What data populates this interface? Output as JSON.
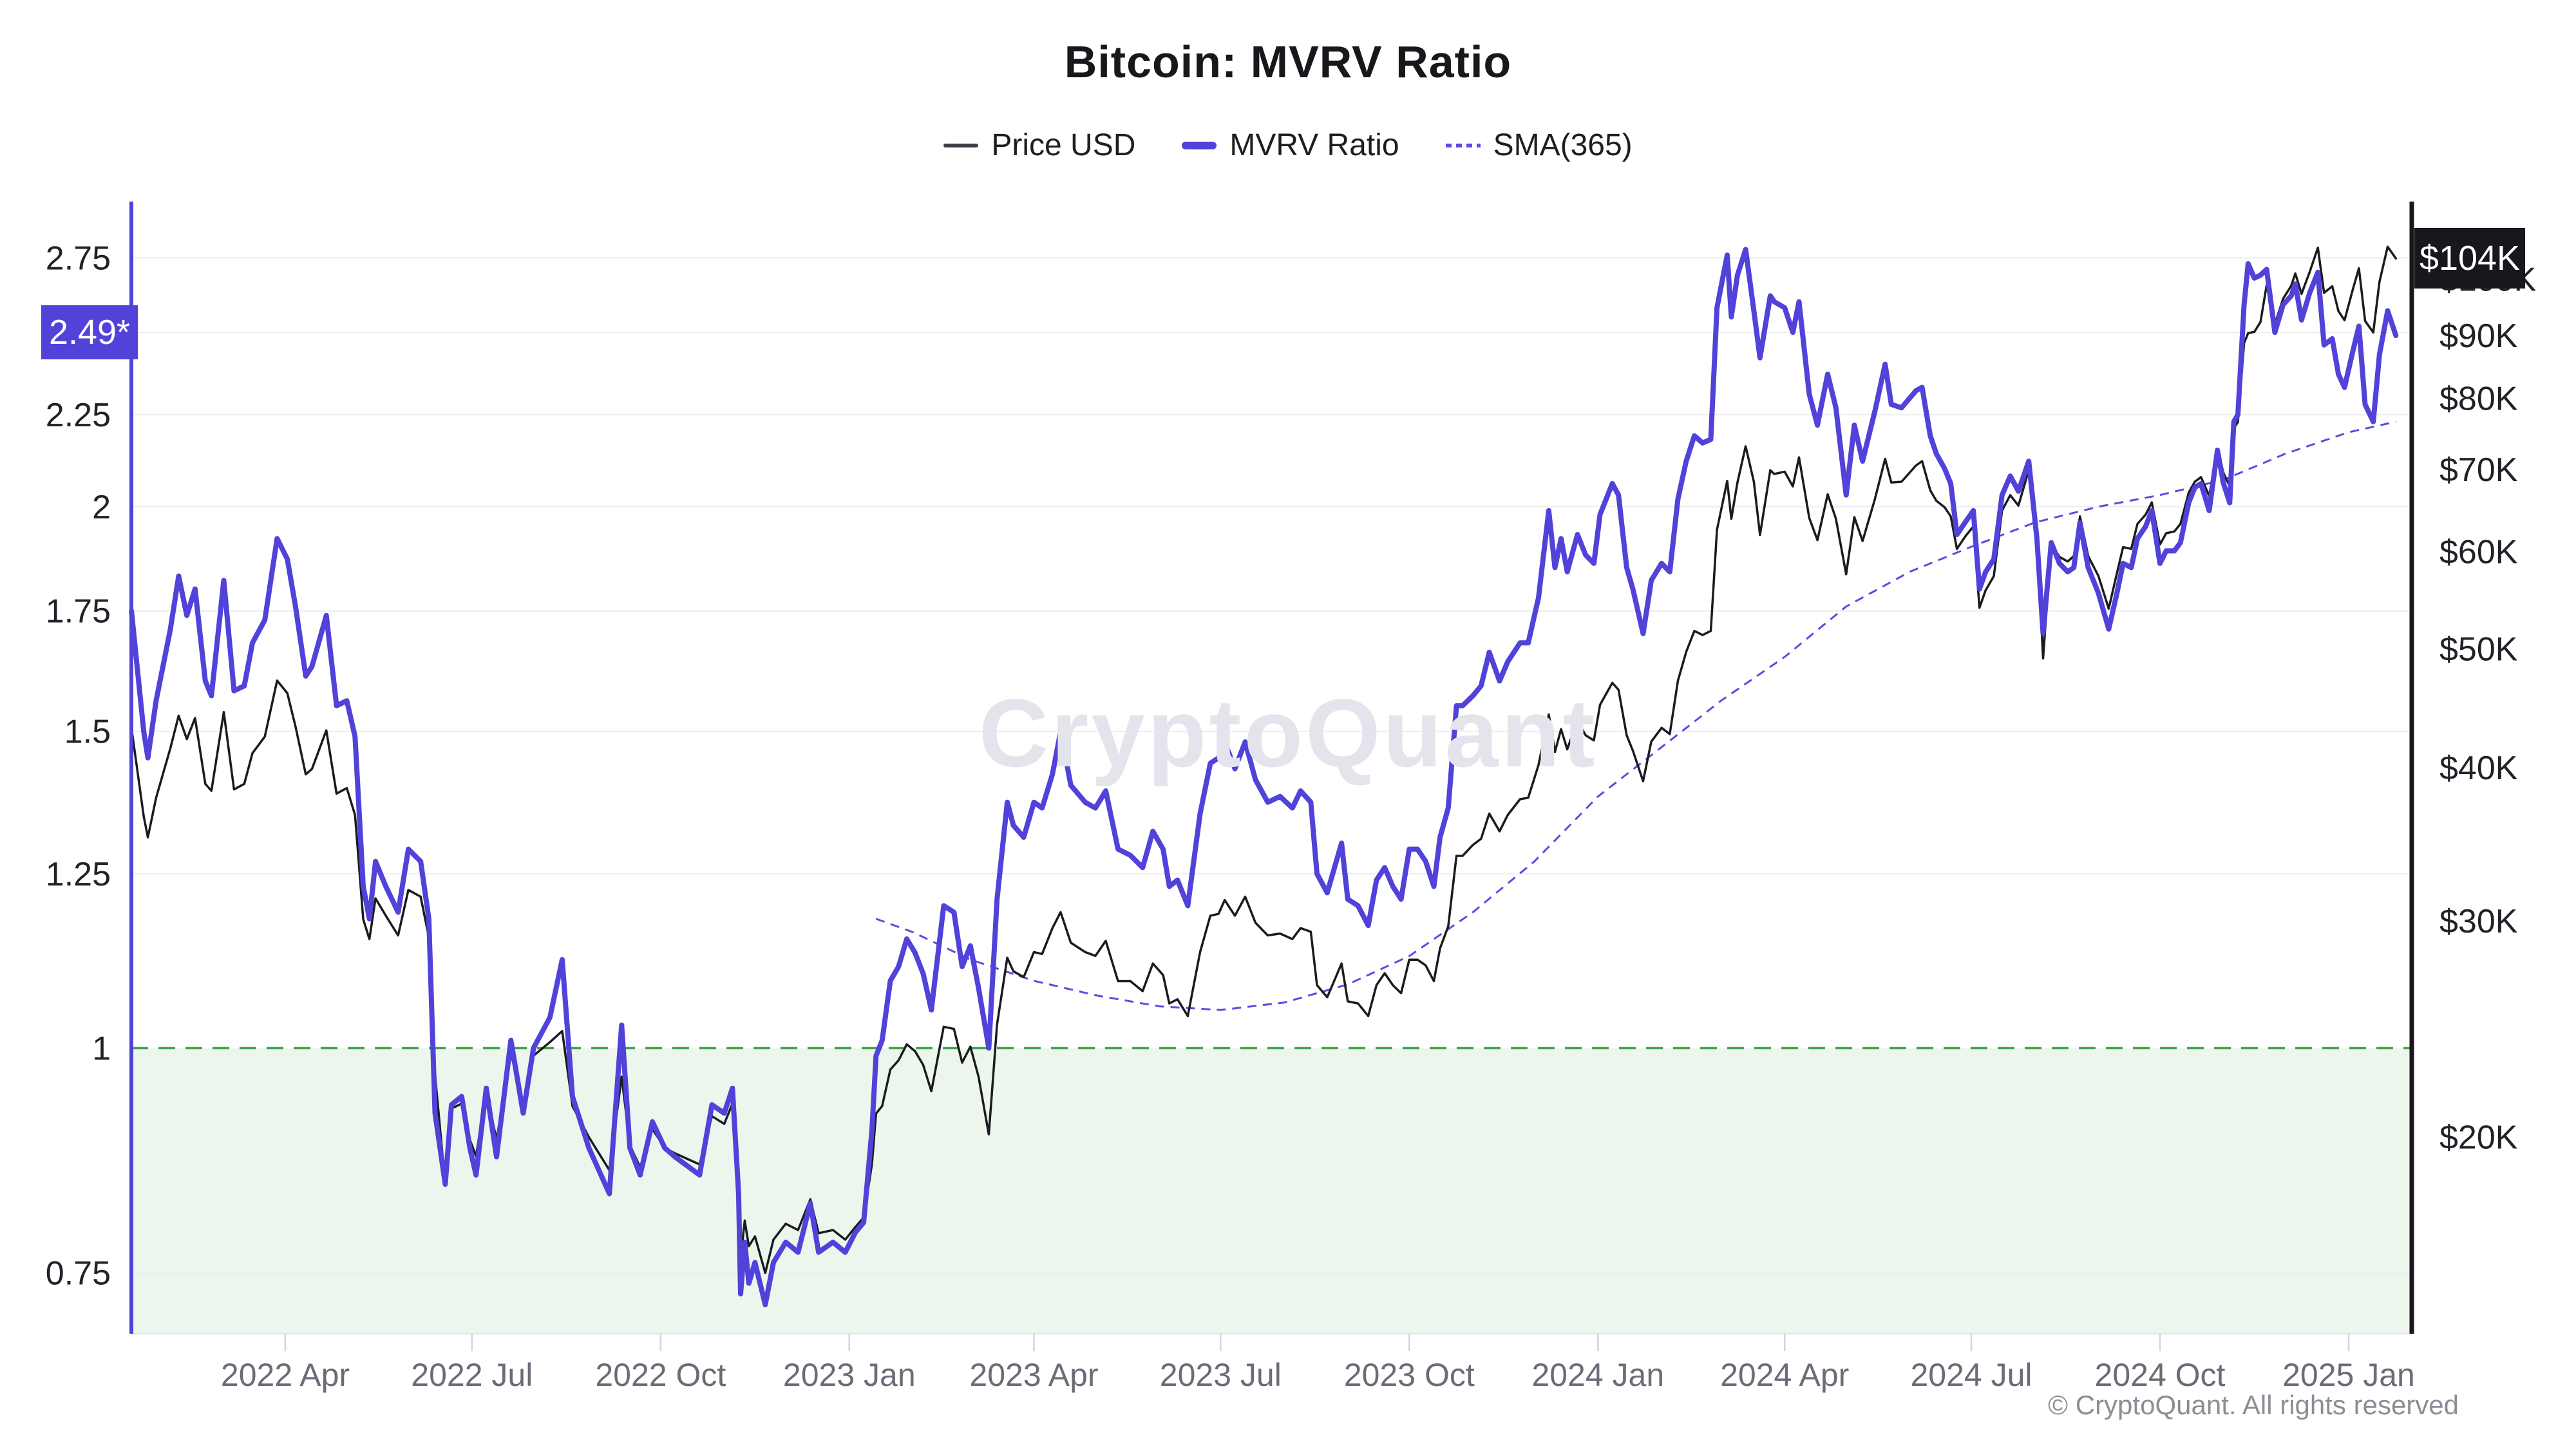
{
  "header": {
    "title": "Bitcoin: MVRV Ratio"
  },
  "legend": {
    "items": [
      {
        "label": "Price USD",
        "kind": "line",
        "color": "#3c3c44"
      },
      {
        "label": "MVRV Ratio",
        "kind": "thick",
        "color": "#5142d9"
      },
      {
        "label": "SMA(365)",
        "kind": "dash",
        "color": "#5b4ce0"
      }
    ]
  },
  "badges": {
    "mvrv_current": {
      "text": "2.49*",
      "value": 2.49,
      "color": "#5142d9"
    },
    "price_current": {
      "text": "$104K",
      "value": 104,
      "color": "#17171c"
    }
  },
  "watermark": {
    "text": "CryptoQuant"
  },
  "footer": {
    "copyright": "© CryptoQuant. All rights reserved"
  },
  "colors": {
    "accent_indigo": "#5142d9",
    "sma_indigo": "#5b4ce0",
    "price_black": "#1b1b1f",
    "threshold_green": "#41a54c",
    "zone_green_fill": "rgba(72,166,80,0.10)",
    "grid": "#ededf2",
    "axis_left": "#5142d9",
    "axis_right": "#17171c",
    "tick_text": "#6c6c78",
    "value_text": "#212128"
  },
  "chart_data": {
    "type": "line",
    "title": "Bitcoin: MVRV Ratio",
    "legend_position": "top",
    "grid": true,
    "x_axis": {
      "start": "2022-01-16",
      "end": "2025-01-24",
      "ticks": [
        {
          "label": "2022 Apr",
          "date": "2022-04-01"
        },
        {
          "label": "2022 Jul",
          "date": "2022-07-01"
        },
        {
          "label": "2022 Oct",
          "date": "2022-10-01"
        },
        {
          "label": "2023 Jan",
          "date": "2023-01-01"
        },
        {
          "label": "2023 Apr",
          "date": "2023-04-01"
        },
        {
          "label": "2023 Jul",
          "date": "2023-07-01"
        },
        {
          "label": "2023 Oct",
          "date": "2023-10-01"
        },
        {
          "label": "2024 Jan",
          "date": "2024-01-01"
        },
        {
          "label": "2024 Apr",
          "date": "2024-04-01"
        },
        {
          "label": "2024 Jul",
          "date": "2024-07-01"
        },
        {
          "label": "2024 Oct",
          "date": "2024-10-01"
        },
        {
          "label": "2025 Jan",
          "date": "2025-01-01"
        }
      ]
    },
    "y_left": {
      "name": "MVRV Ratio",
      "scale": "log",
      "range": [
        0.7,
        2.94
      ],
      "tick_labels": [
        {
          "label": "2.75",
          "value": 2.75
        },
        {
          "label": "2.25",
          "value": 2.25
        },
        {
          "label": "2",
          "value": 2
        },
        {
          "label": "1.75",
          "value": 1.75
        },
        {
          "label": "1.5",
          "value": 1.5
        },
        {
          "label": "1.25",
          "value": 1.25
        },
        {
          "label": "1",
          "value": 1
        },
        {
          "label": "0.75",
          "value": 0.75
        }
      ],
      "gridline_values": [
        2.75,
        2.5,
        2.25,
        2,
        1.75,
        1.5,
        1.25,
        0.75
      ],
      "threshold": {
        "value": 1,
        "style": "dashed",
        "color": "#41a54c"
      },
      "undervalued_zone": {
        "below": 1,
        "fill": "rgba(72,166,80,0.10)"
      }
    },
    "y_right": {
      "name": "Price USD",
      "scale": "log",
      "unit": "USD",
      "range_k": [
        14,
        115
      ],
      "tick_labels": [
        {
          "label": "$100K",
          "value": 100
        },
        {
          "label": "$90K",
          "value": 90
        },
        {
          "label": "$80K",
          "value": 80
        },
        {
          "label": "$70K",
          "value": 70
        },
        {
          "label": "$60K",
          "value": 60
        },
        {
          "label": "$50K",
          "value": 50
        },
        {
          "label": "$40K",
          "value": 40
        },
        {
          "label": "$30K",
          "value": 30
        },
        {
          "label": "$20K",
          "value": 20
        }
      ]
    },
    "dates": [
      "2022-01-16",
      "2022-01-22",
      "2022-01-24",
      "2022-01-28",
      "2022-02-04",
      "2022-02-08",
      "2022-02-12",
      "2022-02-16",
      "2022-02-21",
      "2022-02-24",
      "2022-03-02",
      "2022-03-07",
      "2022-03-12",
      "2022-03-16",
      "2022-03-22",
      "2022-03-28",
      "2022-04-02",
      "2022-04-06",
      "2022-04-11",
      "2022-04-14",
      "2022-04-21",
      "2022-04-26",
      "2022-05-01",
      "2022-05-05",
      "2022-05-09",
      "2022-05-12",
      "2022-05-15",
      "2022-05-20",
      "2022-05-26",
      "2022-05-31",
      "2022-06-06",
      "2022-06-10",
      "2022-06-13",
      "2022-06-18",
      "2022-06-21",
      "2022-06-26",
      "2022-06-30",
      "2022-07-03",
      "2022-07-08",
      "2022-07-13",
      "2022-07-20",
      "2022-07-26",
      "2022-07-31",
      "2022-08-08",
      "2022-08-14",
      "2022-08-19",
      "2022-08-27",
      "2022-09-06",
      "2022-09-12",
      "2022-09-16",
      "2022-09-21",
      "2022-09-27",
      "2022-10-03",
      "2022-10-08",
      "2022-10-14",
      "2022-10-20",
      "2022-10-26",
      "2022-11-01",
      "2022-11-05",
      "2022-11-08",
      "2022-11-09",
      "2022-11-11",
      "2022-11-13",
      "2022-11-16",
      "2022-11-21",
      "2022-11-25",
      "2022-12-01",
      "2022-12-07",
      "2022-12-13",
      "2022-12-17",
      "2022-12-24",
      "2022-12-30",
      "2023-01-04",
      "2023-01-08",
      "2023-01-12",
      "2023-01-14",
      "2023-01-17",
      "2023-01-21",
      "2023-01-25",
      "2023-01-29",
      "2023-02-02",
      "2023-02-06",
      "2023-02-10",
      "2023-02-16",
      "2023-02-21",
      "2023-02-25",
      "2023-03-01",
      "2023-03-05",
      "2023-03-10",
      "2023-03-14",
      "2023-03-19",
      "2023-03-22",
      "2023-03-27",
      "2023-04-01",
      "2023-04-05",
      "2023-04-10",
      "2023-04-14",
      "2023-04-19",
      "2023-04-26",
      "2023-05-01",
      "2023-05-06",
      "2023-05-12",
      "2023-05-18",
      "2023-05-24",
      "2023-05-29",
      "2023-06-03",
      "2023-06-06",
      "2023-06-10",
      "2023-06-15",
      "2023-06-21",
      "2023-06-26",
      "2023-06-30",
      "2023-07-03",
      "2023-07-08",
      "2023-07-13",
      "2023-07-18",
      "2023-07-24",
      "2023-07-30",
      "2023-08-05",
      "2023-08-09",
      "2023-08-14",
      "2023-08-17",
      "2023-08-22",
      "2023-08-29",
      "2023-09-01",
      "2023-09-06",
      "2023-09-11",
      "2023-09-15",
      "2023-09-19",
      "2023-09-23",
      "2023-09-27",
      "2023-10-01",
      "2023-10-05",
      "2023-10-09",
      "2023-10-13",
      "2023-10-16",
      "2023-10-20",
      "2023-10-24",
      "2023-10-27",
      "2023-11-01",
      "2023-11-05",
      "2023-11-09",
      "2023-11-14",
      "2023-11-18",
      "2023-11-24",
      "2023-11-28",
      "2023-12-03",
      "2023-12-08",
      "2023-12-11",
      "2023-12-14",
      "2023-12-17",
      "2023-12-22",
      "2023-12-26",
      "2023-12-30",
      "2024-01-02",
      "2024-01-08",
      "2024-01-11",
      "2024-01-15",
      "2024-01-18",
      "2024-01-23",
      "2024-01-27",
      "2024-02-01",
      "2024-02-05",
      "2024-02-09",
      "2024-02-13",
      "2024-02-17",
      "2024-02-21",
      "2024-02-25",
      "2024-02-28",
      "2024-03-04",
      "2024-03-06",
      "2024-03-09",
      "2024-03-13",
      "2024-03-17",
      "2024-03-20",
      "2024-03-25",
      "2024-03-27",
      "2024-04-01",
      "2024-04-05",
      "2024-04-08",
      "2024-04-13",
      "2024-04-17",
      "2024-04-22",
      "2024-04-26",
      "2024-05-01",
      "2024-05-05",
      "2024-05-09",
      "2024-05-15",
      "2024-05-20",
      "2024-05-23",
      "2024-05-28",
      "2024-06-04",
      "2024-06-07",
      "2024-06-11",
      "2024-06-14",
      "2024-06-18",
      "2024-06-21",
      "2024-06-24",
      "2024-06-28",
      "2024-07-02",
      "2024-07-05",
      "2024-07-08",
      "2024-07-12",
      "2024-07-16",
      "2024-07-20",
      "2024-07-24",
      "2024-07-29",
      "2024-08-02",
      "2024-08-05",
      "2024-08-09",
      "2024-08-13",
      "2024-08-17",
      "2024-08-20",
      "2024-08-23",
      "2024-08-27",
      "2024-09-01",
      "2024-09-06",
      "2024-09-10",
      "2024-09-13",
      "2024-09-17",
      "2024-09-20",
      "2024-09-24",
      "2024-09-27",
      "2024-10-01",
      "2024-10-04",
      "2024-10-08",
      "2024-10-11",
      "2024-10-15",
      "2024-10-18",
      "2024-10-21",
      "2024-10-25",
      "2024-10-29",
      "2024-11-01",
      "2024-11-04",
      "2024-11-06",
      "2024-11-08",
      "2024-11-11",
      "2024-11-13",
      "2024-11-16",
      "2024-11-19",
      "2024-11-22",
      "2024-11-26",
      "2024-11-30",
      "2024-12-04",
      "2024-12-06",
      "2024-12-09",
      "2024-12-13",
      "2024-12-17",
      "2024-12-20",
      "2024-12-24",
      "2024-12-27",
      "2024-12-30",
      "2025-01-03",
      "2025-01-06",
      "2025-01-09",
      "2025-01-13",
      "2025-01-16",
      "2025-01-20",
      "2025-01-24"
    ],
    "series": [
      {
        "name": "Price USD",
        "axis": "right",
        "unit": "USD thousands",
        "color": "#1b1b1f",
        "values": [
          43.1,
          36.5,
          35.1,
          37.8,
          41.5,
          44.1,
          42.2,
          43.9,
          38.8,
          38.3,
          44.4,
          38.4,
          38.8,
          41.1,
          42.4,
          47.1,
          46.0,
          43.2,
          39.5,
          39.9,
          42.9,
          38.1,
          38.5,
          36.6,
          30.1,
          29.0,
          31.3,
          30.3,
          29.2,
          31.8,
          31.4,
          29.1,
          22.5,
          18.3,
          21.1,
          21.3,
          19.9,
          19.3,
          21.8,
          19.9,
          23.4,
          21.3,
          23.3,
          23.9,
          24.4,
          21.2,
          20.0,
          18.8,
          22.4,
          19.7,
          18.9,
          20.3,
          19.6,
          19.4,
          19.2,
          19.0,
          20.8,
          20.5,
          21.3,
          18.5,
          15.9,
          17.1,
          16.3,
          16.6,
          15.5,
          16.5,
          17.0,
          16.8,
          17.8,
          16.7,
          16.8,
          16.5,
          16.9,
          17.2,
          19.0,
          20.9,
          21.2,
          22.7,
          23.1,
          23.8,
          23.5,
          22.9,
          21.8,
          24.6,
          24.5,
          23.0,
          23.7,
          22.4,
          20.1,
          24.7,
          28.0,
          27.3,
          27.0,
          28.3,
          28.2,
          29.6,
          30.5,
          28.8,
          28.3,
          28.1,
          28.9,
          26.8,
          26.8,
          26.3,
          27.7,
          27.1,
          25.7,
          25.9,
          25.1,
          28.3,
          30.3,
          30.4,
          31.2,
          30.3,
          31.4,
          29.9,
          29.2,
          29.3,
          29.0,
          29.6,
          29.4,
          26.6,
          26.0,
          27.7,
          25.8,
          25.7,
          25.1,
          26.6,
          27.2,
          26.6,
          26.2,
          27.9,
          27.9,
          27.6,
          26.8,
          28.5,
          29.7,
          33.9,
          33.9,
          34.6,
          35.0,
          36.7,
          35.5,
          36.6,
          37.7,
          37.8,
          40.2,
          44.2,
          41.2,
          43.0,
          41.4,
          43.7,
          42.5,
          42.1,
          45.0,
          46.9,
          46.3,
          42.5,
          41.3,
          39.0,
          42.0,
          43.1,
          42.6,
          47.1,
          49.7,
          51.7,
          51.3,
          51.7,
          62.5,
          68.5,
          63.8,
          68.3,
          73.1,
          68.4,
          61.9,
          69.9,
          69.4,
          69.7,
          67.8,
          71.6,
          63.9,
          61.3,
          66.8,
          63.8,
          57.5,
          64.0,
          61.2,
          66.2,
          71.4,
          68.3,
          68.4,
          70.5,
          71.1,
          67.3,
          66.0,
          65.2,
          64.1,
          60.3,
          61.7,
          62.9,
          54.0,
          55.8,
          57.3,
          64.8,
          66.7,
          65.4,
          69.9,
          61.4,
          49.1,
          60.9,
          59.4,
          58.9,
          59.5,
          64.1,
          59.5,
          57.3,
          53.9,
          57.6,
          60.5,
          60.3,
          63.2,
          64.3,
          65.8,
          60.8,
          62.1,
          62.3,
          63.2,
          67.0,
          68.4,
          69.0,
          66.6,
          72.7,
          69.5,
          67.8,
          75.6,
          76.5,
          88.7,
          90.4,
          90.6,
          92.3,
          98.9,
          91.9,
          96.4,
          98.8,
          101.1,
          97.3,
          101.4,
          106.1,
          97.5,
          98.7,
          94.2,
          92.6,
          98.1,
          102.1,
          92.5,
          90.5,
          99.5,
          106.3,
          104.0
        ]
      },
      {
        "name": "MVRV Ratio",
        "axis": "left",
        "color": "#5142d9",
        "values": [
          1.75,
          1.5,
          1.45,
          1.56,
          1.71,
          1.83,
          1.74,
          1.8,
          1.6,
          1.57,
          1.82,
          1.58,
          1.59,
          1.68,
          1.73,
          1.92,
          1.87,
          1.76,
          1.61,
          1.63,
          1.74,
          1.55,
          1.56,
          1.49,
          1.23,
          1.18,
          1.27,
          1.23,
          1.19,
          1.29,
          1.27,
          1.18,
          0.92,
          0.84,
          0.93,
          0.94,
          0.88,
          0.85,
          0.95,
          0.87,
          1.01,
          0.92,
          1.0,
          1.04,
          1.12,
          0.94,
          0.88,
          0.83,
          1.03,
          0.88,
          0.85,
          0.91,
          0.88,
          0.87,
          0.86,
          0.85,
          0.93,
          0.92,
          0.95,
          0.83,
          0.73,
          0.78,
          0.74,
          0.76,
          0.72,
          0.76,
          0.78,
          0.77,
          0.82,
          0.77,
          0.78,
          0.77,
          0.79,
          0.8,
          0.9,
          0.99,
          1.01,
          1.09,
          1.11,
          1.15,
          1.13,
          1.1,
          1.05,
          1.2,
          1.19,
          1.11,
          1.14,
          1.08,
          1.0,
          1.21,
          1.37,
          1.33,
          1.31,
          1.37,
          1.36,
          1.42,
          1.5,
          1.4,
          1.37,
          1.36,
          1.39,
          1.29,
          1.28,
          1.26,
          1.32,
          1.29,
          1.23,
          1.24,
          1.2,
          1.35,
          1.44,
          1.45,
          1.48,
          1.43,
          1.48,
          1.41,
          1.37,
          1.38,
          1.36,
          1.39,
          1.37,
          1.25,
          1.22,
          1.3,
          1.21,
          1.2,
          1.17,
          1.24,
          1.26,
          1.23,
          1.21,
          1.29,
          1.29,
          1.27,
          1.23,
          1.31,
          1.36,
          1.55,
          1.55,
          1.57,
          1.59,
          1.66,
          1.6,
          1.64,
          1.68,
          1.68,
          1.78,
          1.99,
          1.85,
          1.92,
          1.84,
          1.93,
          1.88,
          1.86,
          1.98,
          2.06,
          2.03,
          1.85,
          1.8,
          1.7,
          1.82,
          1.86,
          1.84,
          2.02,
          2.12,
          2.19,
          2.17,
          2.18,
          2.58,
          2.76,
          2.55,
          2.69,
          2.78,
          2.57,
          2.42,
          2.62,
          2.6,
          2.58,
          2.5,
          2.6,
          2.31,
          2.22,
          2.37,
          2.27,
          2.03,
          2.22,
          2.12,
          2.26,
          2.4,
          2.28,
          2.27,
          2.32,
          2.33,
          2.19,
          2.14,
          2.1,
          2.06,
          1.93,
          1.96,
          1.99,
          1.8,
          1.84,
          1.87,
          2.03,
          2.08,
          2.04,
          2.12,
          1.92,
          1.7,
          1.91,
          1.86,
          1.84,
          1.85,
          1.96,
          1.85,
          1.79,
          1.71,
          1.79,
          1.86,
          1.85,
          1.92,
          1.95,
          1.99,
          1.86,
          1.89,
          1.89,
          1.91,
          2.01,
          2.05,
          2.06,
          1.99,
          2.15,
          2.06,
          2.01,
          2.23,
          2.25,
          2.59,
          2.73,
          2.68,
          2.69,
          2.71,
          2.5,
          2.59,
          2.62,
          2.66,
          2.54,
          2.63,
          2.7,
          2.46,
          2.48,
          2.37,
          2.33,
          2.44,
          2.52,
          2.28,
          2.23,
          2.43,
          2.57,
          2.49
        ]
      },
      {
        "name": "SMA(365)",
        "axis": "left",
        "style": "dashed",
        "color": "#5b4ce0",
        "dates": [
          "2023-01-14",
          "2023-02-01",
          "2023-03-01",
          "2023-04-01",
          "2023-05-01",
          "2023-06-01",
          "2023-07-01",
          "2023-08-01",
          "2023-09-01",
          "2023-10-01",
          "2023-11-01",
          "2023-12-01",
          "2024-01-01",
          "2024-02-01",
          "2024-03-01",
          "2024-04-01",
          "2024-05-01",
          "2024-06-01",
          "2024-07-01",
          "2024-08-01",
          "2024-09-01",
          "2024-10-01",
          "2024-11-01",
          "2024-12-01",
          "2025-01-01",
          "2025-01-24"
        ],
        "values": [
          1.18,
          1.16,
          1.12,
          1.09,
          1.07,
          1.055,
          1.05,
          1.06,
          1.085,
          1.125,
          1.19,
          1.27,
          1.38,
          1.47,
          1.56,
          1.65,
          1.76,
          1.84,
          1.9,
          1.96,
          2.0,
          2.03,
          2.07,
          2.14,
          2.2,
          2.23
        ]
      }
    ]
  }
}
